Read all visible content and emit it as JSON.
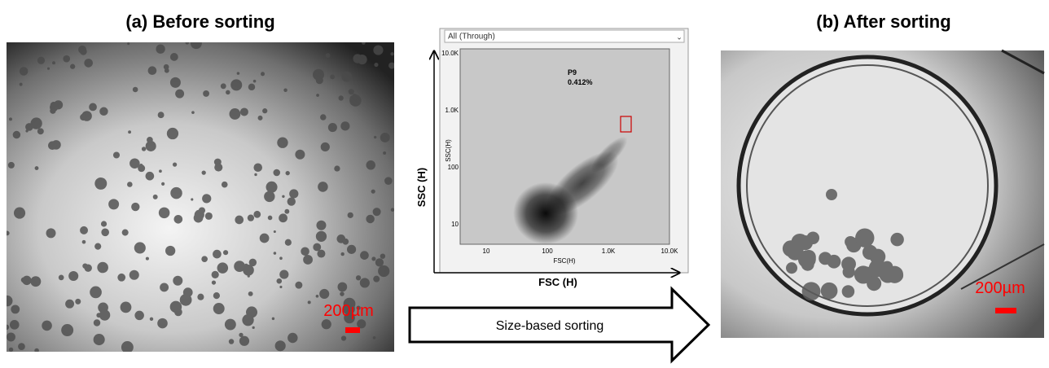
{
  "panel_a": {
    "title": "(a) Before sorting",
    "scale_bar": "200µm"
  },
  "panel_b": {
    "title": "(b) After sorting",
    "scale_bar": "200µm"
  },
  "cytometry": {
    "dropdown": "All (Through)",
    "y_ticks": [
      "10.0K",
      "1.0K",
      "100",
      "10"
    ],
    "x_ticks": [
      "10",
      "100",
      "1.0K",
      "10.0K"
    ],
    "y_label_small": "SSC(H)",
    "x_label_small": "FSC(H)",
    "gate_name": "P9",
    "gate_percent": "0.412%",
    "y_axis_label": "SSC (H)",
    "x_axis_label": "FSC (H)"
  },
  "arrow_label": "Size-based sorting"
}
